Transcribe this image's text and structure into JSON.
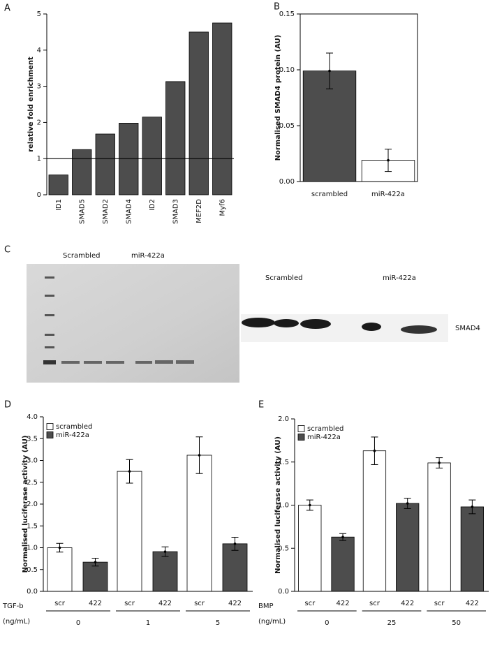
{
  "chart_data": [
    {
      "type": "bar",
      "panel": "A",
      "ylabel": "relative fold enrichment",
      "categories": [
        "ID1",
        "SMAD5",
        "SMAD2",
        "SMAD4",
        "ID2",
        "SMAD3",
        "MEF2D",
        "Myf6"
      ],
      "values": [
        0.55,
        1.25,
        1.68,
        1.98,
        2.15,
        3.13,
        4.5,
        4.75
      ],
      "color": "#4d4d4d",
      "hline": 1,
      "ylim": [
        0,
        5
      ],
      "yticks": [
        0,
        1,
        2,
        3,
        4,
        5
      ],
      "rotate_labels": true
    },
    {
      "type": "bar",
      "panel": "B",
      "ylabel": "Normalised SMAD4 protein (AU)",
      "categories": [
        "scrambled",
        "miR-422a"
      ],
      "values": [
        0.099,
        0.019
      ],
      "errors": [
        0.016,
        0.01
      ],
      "colors": [
        "#4d4d4d",
        "#ffffff"
      ],
      "ylim": [
        0,
        0.15
      ],
      "yticks": [
        {
          "value": 0,
          "label": "0.00"
        },
        0.05,
        {
          "value": 0.1,
          "label": "0.10"
        },
        0.15
      ],
      "frame": true
    },
    {
      "type": "grouped_bar",
      "panel": "D",
      "ylabel": "Normalised luciferase activity (AU)",
      "xlabel": "TGF-b",
      "xunit": "(ng/mL)",
      "categories": [
        "0",
        "1",
        "5"
      ],
      "series": [
        {
          "name": "scrambled",
          "tick_label": "scr",
          "color": "#ffffff",
          "values": [
            1.0,
            2.75,
            3.12
          ],
          "errors": [
            0.1,
            0.27,
            0.42
          ]
        },
        {
          "name": "miR-422a",
          "tick_label": "422",
          "color": "#4d4d4d",
          "values": [
            0.67,
            0.91,
            1.09
          ],
          "errors": [
            0.09,
            0.11,
            0.15
          ]
        }
      ],
      "ylim": [
        0,
        4
      ],
      "yticks": [
        {
          "value": 0,
          "label": "0.0"
        },
        0.5,
        {
          "value": 1,
          "label": "1.0"
        },
        1.5,
        {
          "value": 2,
          "label": "2.0"
        },
        2.5,
        {
          "value": 3,
          "label": "3.0"
        },
        3.5,
        {
          "value": 4,
          "label": "4.0"
        }
      ]
    },
    {
      "type": "grouped_bar",
      "panel": "E",
      "ylabel": "Normalised luciferase activity (AU)",
      "xlabel": "BMP",
      "xunit": "(ng/mL)",
      "categories": [
        "0",
        "25",
        "50"
      ],
      "series": [
        {
          "name": "scrambled",
          "tick_label": "scr",
          "color": "#ffffff",
          "values": [
            1.0,
            1.63,
            1.49
          ],
          "errors": [
            0.06,
            0.16,
            0.06
          ]
        },
        {
          "name": "miR-422a",
          "tick_label": "422",
          "color": "#4d4d4d",
          "values": [
            0.63,
            1.02,
            0.98
          ],
          "errors": [
            0.04,
            0.06,
            0.08
          ]
        }
      ],
      "ylim": [
        0,
        2
      ],
      "yticks": [
        {
          "value": 0,
          "label": "0.0"
        },
        0.5,
        {
          "value": 1,
          "label": "1.0"
        },
        1.5,
        {
          "value": 2,
          "label": "2.0"
        }
      ]
    }
  ],
  "blot": {
    "panel": "C",
    "left_labels": [
      "Scrambled",
      "miR-422a"
    ],
    "right_labels": [
      "Scrambled",
      "miR-422a"
    ],
    "band_label": "SMAD4"
  }
}
